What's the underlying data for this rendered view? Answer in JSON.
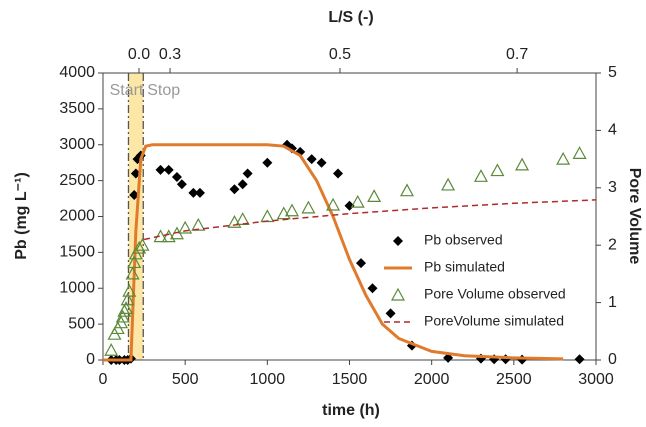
{
  "chart_data": {
    "type": "scatter",
    "x2label": "L/S (-)",
    "xlabel": "time (h)",
    "ylabel": "Pb (mg L⁻¹)",
    "y2label": "Pore Volume",
    "xlim": [
      0,
      3000
    ],
    "xticks": [
      0,
      500,
      1000,
      1500,
      2000,
      2500,
      3000
    ],
    "ylim": [
      0,
      4000
    ],
    "yticks": [
      0,
      500,
      1000,
      1500,
      2000,
      2500,
      3000,
      3500,
      4000
    ],
    "y2lim": [
      0,
      5
    ],
    "y2ticks": [
      0,
      1,
      2,
      3,
      4,
      5
    ],
    "x2ticks": [
      {
        "value": 219,
        "label": "0.0"
      },
      {
        "value": 408,
        "label": "0.3"
      },
      {
        "value": 1442,
        "label": "0.5"
      },
      {
        "value": 2520,
        "label": "0.7"
      }
    ],
    "shade": {
      "range": [
        155,
        245
      ],
      "color": "#fde7a6"
    },
    "annotations": [
      "Start",
      "Stop"
    ],
    "legend": "right",
    "series": [
      {
        "name": "Pb observed",
        "kind": "scatter",
        "marker": "diamond",
        "color": "#000000",
        "x": [
          50,
          80,
          100,
          130,
          150,
          170,
          190,
          200,
          210,
          230,
          350,
          400,
          450,
          480,
          550,
          590,
          800,
          850,
          880,
          1000,
          1120,
          1150,
          1200,
          1270,
          1330,
          1430,
          1500,
          1570,
          1640,
          1750,
          1880,
          2100,
          2300,
          2380,
          2450,
          2550,
          2900
        ],
        "values": [
          0,
          0,
          0,
          0,
          0,
          20,
          2300,
          2600,
          2800,
          2850,
          2650,
          2650,
          2550,
          2450,
          2330,
          2330,
          2380,
          2450,
          2600,
          2750,
          3000,
          2950,
          2900,
          2800,
          2750,
          2600,
          2150,
          1350,
          1000,
          650,
          200,
          30,
          20,
          10,
          10,
          5,
          10
        ]
      },
      {
        "name": "Pb simulated",
        "kind": "line",
        "color": "#e07b2e",
        "x": [
          0,
          170,
          200,
          230,
          260,
          300,
          1000,
          1100,
          1200,
          1300,
          1400,
          1500,
          1600,
          1700,
          1800,
          2000,
          2200,
          2500,
          2800
        ],
        "values": [
          0,
          0,
          1800,
          2800,
          2980,
          3000,
          3000,
          2980,
          2850,
          2500,
          2000,
          1400,
          900,
          500,
          300,
          120,
          60,
          30,
          15
        ]
      },
      {
        "name": "Pore Volume observed",
        "kind": "scatter",
        "marker": "triangle",
        "color": "#5a8a3a",
        "axis": "y2",
        "x": [
          50,
          70,
          90,
          110,
          120,
          130,
          140,
          150,
          160,
          180,
          190,
          200,
          220,
          240,
          350,
          400,
          450,
          500,
          580,
          800,
          850,
          1000,
          1100,
          1150,
          1250,
          1400,
          1550,
          1650,
          1850,
          2100,
          2300,
          2400,
          2550,
          2800,
          2900
        ],
        "values": [
          0.17,
          0.45,
          0.55,
          0.65,
          0.75,
          0.85,
          0.9,
          1.05,
          1.2,
          1.5,
          1.7,
          1.85,
          1.95,
          2.0,
          2.15,
          2.15,
          2.2,
          2.3,
          2.35,
          2.4,
          2.45,
          2.5,
          2.55,
          2.6,
          2.65,
          2.7,
          2.75,
          2.85,
          2.95,
          3.05,
          3.2,
          3.3,
          3.4,
          3.5,
          3.6
        ]
      },
      {
        "name": "PoreVolume simulated",
        "kind": "line",
        "dash": true,
        "color": "#b02a2a",
        "axis": "y2",
        "x": [
          250,
          500,
          1000,
          1500,
          2000,
          2500,
          3000
        ],
        "values": [
          2.1,
          2.25,
          2.42,
          2.55,
          2.65,
          2.73,
          2.79
        ]
      }
    ]
  }
}
